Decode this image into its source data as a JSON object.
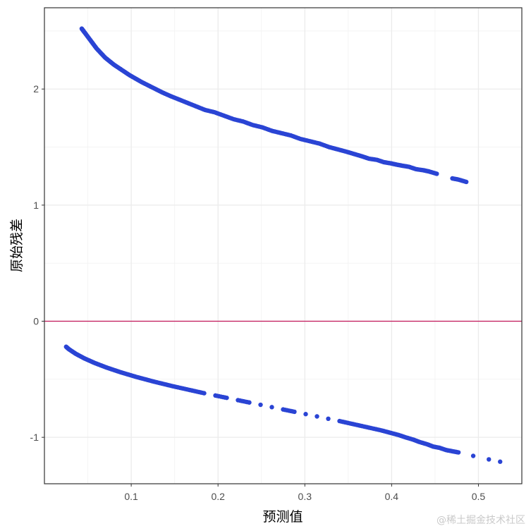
{
  "chart_data": {
    "type": "scatter",
    "title": "",
    "xlabel": "预测值",
    "ylabel": "原始残差",
    "xlim": [
      0.0,
      0.55
    ],
    "ylim": [
      -1.4,
      2.7
    ],
    "x_ticks": [
      0.1,
      0.2,
      0.3,
      0.4,
      0.5
    ],
    "x_tick_labels": [
      "0.1",
      "0.2",
      "0.3",
      "0.4",
      "0.5"
    ],
    "y_ticks": [
      -1,
      0,
      1,
      2
    ],
    "y_tick_labels": [
      "-1",
      "0",
      "1",
      "2"
    ],
    "grid": true,
    "legend": "none",
    "reference_line": {
      "y": 0,
      "color": "#c2185b"
    },
    "point_color": "#2a44d4",
    "series": [
      {
        "values_x": [
          0.043,
          0.045,
          0.048,
          0.052,
          0.056,
          0.06,
          0.065,
          0.07,
          0.075,
          0.08,
          0.086,
          0.092,
          0.098,
          0.105,
          0.112,
          0.12,
          0.128,
          0.136,
          0.145,
          0.155,
          0.165,
          0.175,
          0.185,
          0.196,
          0.207,
          0.218,
          0.229,
          0.24,
          0.251,
          0.262,
          0.273,
          0.284,
          0.295,
          0.306,
          0.317,
          0.328,
          0.338,
          0.348,
          0.357,
          0.366,
          0.374,
          0.383,
          0.391,
          0.399,
          0.405,
          0.412,
          0.42,
          0.428,
          0.437,
          0.443,
          0.452,
          0.47,
          0.477,
          0.486
        ],
        "values_y": [
          2.52,
          2.5,
          2.47,
          2.43,
          2.39,
          2.35,
          2.31,
          2.27,
          2.24,
          2.21,
          2.18,
          2.15,
          2.12,
          2.09,
          2.06,
          2.03,
          2.0,
          1.97,
          1.94,
          1.91,
          1.88,
          1.85,
          1.82,
          1.8,
          1.77,
          1.74,
          1.72,
          1.69,
          1.67,
          1.64,
          1.62,
          1.6,
          1.57,
          1.55,
          1.53,
          1.5,
          1.48,
          1.46,
          1.44,
          1.42,
          1.4,
          1.39,
          1.37,
          1.36,
          1.35,
          1.34,
          1.33,
          1.31,
          1.3,
          1.29,
          1.27,
          1.23,
          1.22,
          1.2
        ]
      },
      {
        "values_x": [
          0.025,
          0.028,
          0.032,
          0.036,
          0.041,
          0.046,
          0.052,
          0.058,
          0.065,
          0.072,
          0.08,
          0.088,
          0.097,
          0.106,
          0.116,
          0.126,
          0.137,
          0.148,
          0.16,
          0.172,
          0.184,
          0.197,
          0.21,
          0.223,
          0.236,
          0.249,
          0.262,
          0.275,
          0.288,
          0.301,
          0.314,
          0.327,
          0.34,
          0.352,
          0.364,
          0.376,
          0.388,
          0.398,
          0.408,
          0.416,
          0.425,
          0.432,
          0.441,
          0.448,
          0.455,
          0.463,
          0.47,
          0.477,
          0.494,
          0.512,
          0.525
        ],
        "values_y": [
          -0.22,
          -0.24,
          -0.26,
          -0.28,
          -0.3,
          -0.32,
          -0.34,
          -0.36,
          -0.38,
          -0.4,
          -0.42,
          -0.44,
          -0.46,
          -0.48,
          -0.5,
          -0.52,
          -0.54,
          -0.56,
          -0.58,
          -0.6,
          -0.62,
          -0.64,
          -0.66,
          -0.68,
          -0.7,
          -0.72,
          -0.74,
          -0.76,
          -0.78,
          -0.8,
          -0.82,
          -0.84,
          -0.86,
          -0.88,
          -0.9,
          -0.92,
          -0.94,
          -0.96,
          -0.98,
          -1.0,
          -1.02,
          -1.04,
          -1.06,
          -1.08,
          -1.09,
          -1.11,
          -1.12,
          -1.13,
          -1.16,
          -1.19,
          -1.21
        ]
      }
    ]
  },
  "watermark": "@稀土掘金技术社区"
}
